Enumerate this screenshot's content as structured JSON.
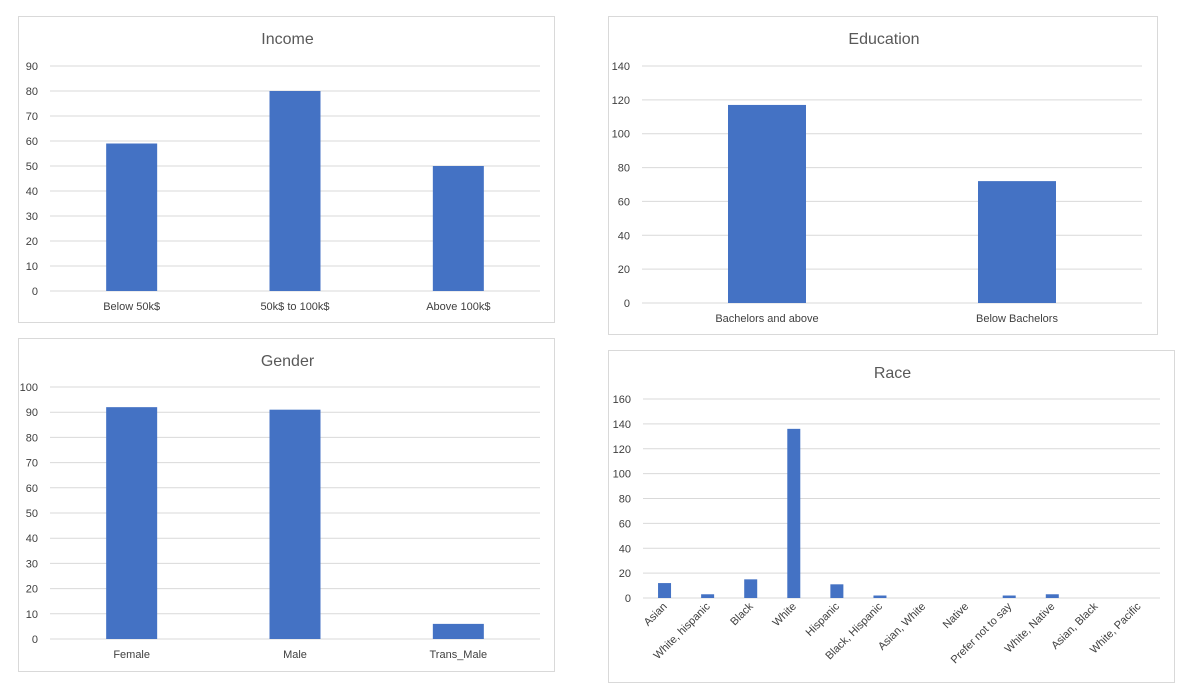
{
  "chart_data": [
    {
      "type": "bar",
      "title": "Income",
      "categories": [
        "Below 50k$",
        "50k$ to 100k$",
        "Above 100k$"
      ],
      "values": [
        59,
        80,
        50
      ],
      "ylim": [
        0,
        90
      ],
      "yticks": [
        0,
        10,
        20,
        30,
        40,
        50,
        60,
        70,
        80,
        90
      ],
      "xlabel": "",
      "ylabel": "",
      "grid": true,
      "color": "#4472c4"
    },
    {
      "type": "bar",
      "title": "Education",
      "categories": [
        "Bachelors and above",
        "Below Bachelors"
      ],
      "values": [
        117,
        72
      ],
      "ylim": [
        0,
        140
      ],
      "yticks": [
        0,
        20,
        40,
        60,
        80,
        100,
        120,
        140
      ],
      "xlabel": "",
      "ylabel": "",
      "grid": true,
      "color": "#4472c4"
    },
    {
      "type": "bar",
      "title": "Gender",
      "categories": [
        "Female",
        "Male",
        "Trans_Male"
      ],
      "values": [
        92,
        91,
        6
      ],
      "ylim": [
        0,
        100
      ],
      "yticks": [
        0,
        10,
        20,
        30,
        40,
        50,
        60,
        70,
        80,
        90,
        100
      ],
      "xlabel": "",
      "ylabel": "",
      "grid": true,
      "color": "#4472c4"
    },
    {
      "type": "bar",
      "title": "Race",
      "categories": [
        "Asian",
        "White, hispanic",
        "Black",
        "White",
        "Hispanic",
        "Black, Hispanic",
        "Asian, White",
        "Native",
        "Prefer not to say",
        "White, Native",
        "Asian, Black",
        "White, Pacific"
      ],
      "values": [
        12,
        3,
        15,
        136,
        11,
        2,
        0,
        0,
        2,
        3,
        0,
        0
      ],
      "ylim": [
        0,
        160
      ],
      "yticks": [
        0,
        20,
        40,
        60,
        80,
        100,
        120,
        140,
        160
      ],
      "xlabel": "",
      "ylabel": "",
      "grid": true,
      "color": "#4472c4"
    }
  ]
}
